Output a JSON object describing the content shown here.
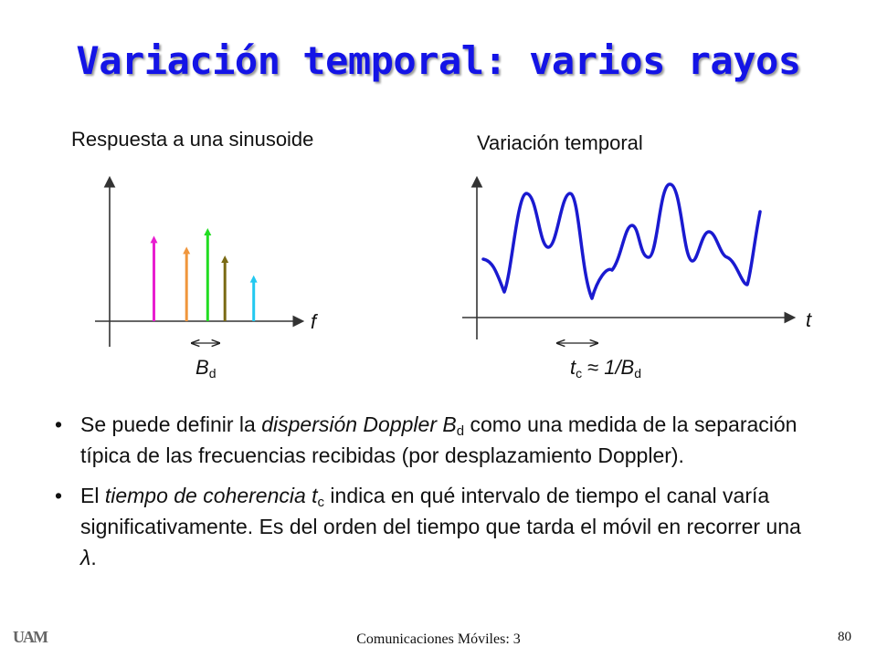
{
  "title": "Variación temporal: varios rayos",
  "left_panel": {
    "heading": "Respuesta a una sinusoide",
    "axis_label": "f",
    "spread_label_main": "B",
    "spread_label_sub": "d",
    "spikes": [
      {
        "x": 0.25,
        "height": 0.78,
        "color": "#e81ed0"
      },
      {
        "x": 0.42,
        "height": 0.68,
        "color": "#f0963c"
      },
      {
        "x": 0.53,
        "height": 0.85,
        "color": "#22dd22"
      },
      {
        "x": 0.62,
        "height": 0.6,
        "color": "#7a6a14"
      },
      {
        "x": 0.77,
        "height": 0.42,
        "color": "#22c8f0"
      }
    ]
  },
  "right_panel": {
    "heading": "Variación temporal",
    "axis_label": "t",
    "tc_label_main": "t",
    "tc_label_sub": "c",
    "approx_symbol": "≈",
    "tc_label_rhs_main": "1/B",
    "tc_label_rhs_sub": "d",
    "wave_color": "#1a1ad0"
  },
  "bullets": [
    {
      "dot": "•",
      "parts": [
        {
          "text": "Se puede definir la ",
          "style": "normal"
        },
        {
          "text": "dispersión Doppler B",
          "style": "italic"
        },
        {
          "text": "d",
          "style": "sub"
        },
        {
          "text": " como una medida de la separación típica de las frecuencias recibidas (por desplazamiento Doppler).",
          "style": "normal"
        }
      ]
    },
    {
      "dot": "•",
      "parts": [
        {
          "text": "El ",
          "style": "normal"
        },
        {
          "text": "tiempo de coherencia t",
          "style": "italic"
        },
        {
          "text": "c",
          "style": "sub"
        },
        {
          "text": " indica en qué intervalo de tiempo el canal varía significativamente. Es del orden del tiempo que tarda el móvil en recorrer una ",
          "style": "normal"
        },
        {
          "text": "λ",
          "style": "italic"
        },
        {
          "text": ".",
          "style": "normal"
        }
      ]
    }
  ],
  "footer": {
    "logo": "UAM",
    "course": "Comunicaciones Móviles: 3",
    "page": "80"
  },
  "colors": {
    "title": "#1414e6",
    "axis": "#333333"
  }
}
